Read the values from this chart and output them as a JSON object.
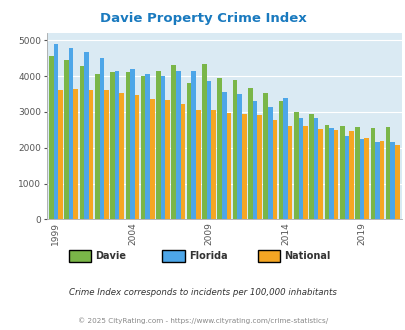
{
  "title": "Davie Property Crime Index",
  "years": [
    1999,
    2000,
    2001,
    2002,
    2003,
    2004,
    2005,
    2006,
    2007,
    2008,
    2009,
    2010,
    2011,
    2012,
    2013,
    2014,
    2015,
    2016,
    2017,
    2018,
    2019,
    2020,
    2021
  ],
  "davie": [
    4560,
    4440,
    4280,
    4060,
    4100,
    4110,
    4000,
    4150,
    4300,
    3800,
    4330,
    3950,
    3900,
    3670,
    3520,
    3300,
    3000,
    2940,
    2640,
    2620,
    2570,
    2560,
    2580
  ],
  "florida": [
    4900,
    4780,
    4670,
    4500,
    4150,
    4200,
    4050,
    4000,
    4140,
    4150,
    3860,
    3550,
    3490,
    3310,
    3130,
    3390,
    2840,
    2820,
    2540,
    2320,
    2250,
    2160,
    2160
  ],
  "national": [
    3600,
    3650,
    3620,
    3600,
    3520,
    3480,
    3360,
    3340,
    3210,
    3040,
    3050,
    2980,
    2940,
    2910,
    2760,
    2620,
    2620,
    2510,
    2490,
    2460,
    2260,
    2200,
    2080
  ],
  "davie_color": "#7ab648",
  "florida_color": "#4da6e8",
  "national_color": "#f5a623",
  "bg_color": "#daeaf3",
  "title_color": "#1a7abf",
  "footer1": "Crime Index corresponds to incidents per 100,000 inhabitants",
  "footer2": "© 2025 CityRating.com - https://www.cityrating.com/crime-statistics/"
}
